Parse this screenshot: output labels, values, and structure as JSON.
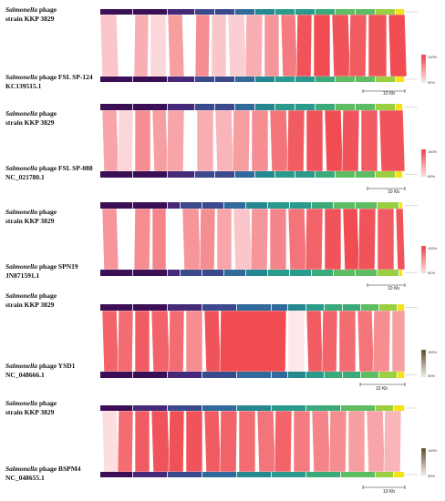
{
  "genus": "Salmonella",
  "panels": [
    {
      "top_label": {
        "rest_line1": "phage",
        "line2": "strain KKP 3829"
      },
      "bottom_label": {
        "rest_line1": "phage FSL SP-124",
        "line2": "KC139515.1"
      },
      "scale_label": "10 Kb",
      "legend": {
        "max": "100%",
        "min": "92%"
      }
    },
    {
      "top_label": {
        "rest_line1": "phage",
        "line2": "strain KKP 3829"
      },
      "bottom_label": {
        "rest_line1": "phage FSL SP-088",
        "line2": "NC_021780.1"
      },
      "scale_label": "10 Kb",
      "legend": {
        "max": "100%",
        "min": "89%"
      }
    },
    {
      "top_label": {
        "rest_line1": "phage",
        "line2": "strain KKP 3829"
      },
      "bottom_label": {
        "rest_line1": "phage SPN19",
        "line2": "JN871591.1"
      },
      "scale_label": "10 Kb",
      "legend": {
        "max": "100%",
        "min": "92%"
      }
    },
    {
      "top_label": {
        "rest_line1": "phage",
        "line2": "strain KKP 3829"
      },
      "bottom_label": {
        "rest_line1": "phage YSD1",
        "line2": "NC_048666.1"
      },
      "scale_label": "10 Kb",
      "legend": {
        "max": "100%",
        "min": "90%"
      }
    },
    {
      "top_label": {
        "rest_line1": "phage",
        "line2": "strain KKP 3829"
      },
      "bottom_label": {
        "rest_line1": "phage BSPM4",
        "line2": "NC_048655.1"
      },
      "scale_label": "10 Kb",
      "legend": {
        "max": "100%",
        "min": "90%"
      }
    }
  ],
  "colors": {
    "high_identity": "#f03e44",
    "low_identity": "#fde3e5",
    "track_start": "#3b0f56",
    "track_mid": "#2a9a8c",
    "track_end": "#f3e21c"
  }
}
